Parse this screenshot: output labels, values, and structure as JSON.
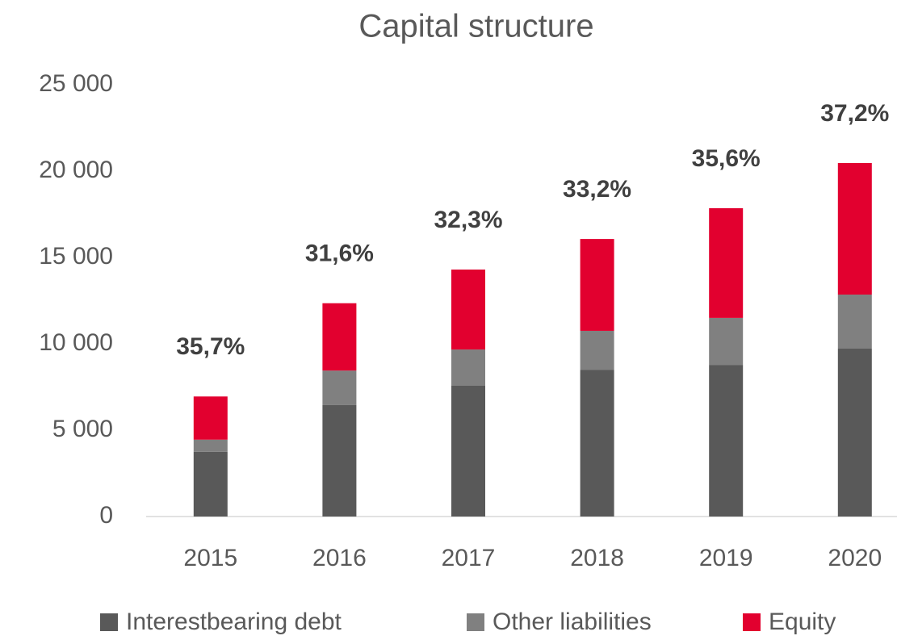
{
  "chart_data": {
    "type": "stacked-bar",
    "title": "Capital structure",
    "categories": [
      "2015",
      "2016",
      "2017",
      "2018",
      "2019",
      "2020"
    ],
    "series": [
      {
        "name": "Interestbearing debt",
        "color": "#595959",
        "values": [
          3750,
          6450,
          7570,
          8500,
          8780,
          9720
        ]
      },
      {
        "name": "Other liabilities",
        "color": "#808080",
        "values": [
          700,
          2000,
          2100,
          2250,
          2720,
          3130
        ]
      },
      {
        "name": "Equity",
        "color": "#e2002f",
        "values": [
          2500,
          3900,
          4630,
          5320,
          6350,
          7620
        ]
      }
    ],
    "annotations": {
      "values": [
        35.7,
        31.6,
        32.3,
        33.2,
        35.6,
        37.2
      ],
      "value_labels": [
        "35,7%",
        "31,6%",
        "32,3%",
        "33,2%",
        "35,6%",
        "37,2%"
      ]
    },
    "ylim": [
      0,
      25000
    ],
    "yticks": [
      0,
      {
        "value": 5000,
        "label": "5 000"
      },
      {
        "value": 10000,
        "label": "10 000"
      },
      {
        "value": 15000,
        "label": "15 000"
      },
      {
        "value": 20000,
        "label": "20 000"
      },
      {
        "value": 25000,
        "label": "25 000"
      }
    ],
    "legend": "bottom"
  }
}
